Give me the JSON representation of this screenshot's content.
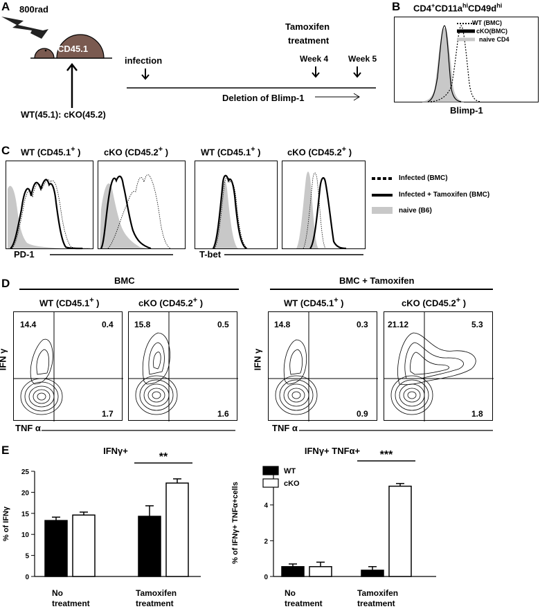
{
  "panel_labels": {
    "a": "A",
    "b": "B",
    "c": "C",
    "d": "D",
    "e": "E"
  },
  "panelA": {
    "dose": "800rad",
    "mouse_label": "CD45.1",
    "chimera": "WT(45.1): cKO(45.2)",
    "infection": "infection",
    "tamoxifen_line1": "Tamoxifen",
    "tamoxifen_line2": "treatment",
    "week4": "Week 4",
    "week5": "Week 5",
    "deletion": "Deletion of Blimp-1"
  },
  "panelB": {
    "title": "CD4",
    "title_sup": "+",
    "title_mid": "CD11a",
    "title_sup2": "hi",
    "title_end": "CD49d",
    "title_sup3": "hi",
    "legend": [
      "WT (BMC)",
      "cKO(BMC)",
      "naive CD4"
    ],
    "xlabel": "Blimp-1"
  },
  "panelC": {
    "headers": [
      "WT  (CD45.1",
      "cKO  (CD45.2",
      "WT  (CD45.1",
      "cKO  (CD45.2"
    ],
    "header_sup": "+",
    "header_close": " )",
    "pd1": "PD-1",
    "tbet": "T-bet",
    "legend": [
      "Infected   (BMC)",
      "Infected + Tamoxifen  (BMC)",
      "naive  (B6)"
    ]
  },
  "panelD": {
    "group1": "BMC",
    "group2": "BMC + Tamoxifen",
    "headers": [
      "WT  (CD45.1",
      "cKO  (CD45.2",
      "WT  (CD45.1",
      "cKO  (CD45.2"
    ],
    "header_sup": "+",
    "header_close": " )",
    "ylabel": "IFN γ",
    "xlabel": "TNF α",
    "quadrants": [
      {
        "ul": "14.4",
        "ur": "0.4",
        "lr": "1.7"
      },
      {
        "ul": "15.8",
        "ur": "0.5",
        "lr": "1.6"
      },
      {
        "ul": "14.8",
        "ur": "0.3",
        "lr": "0.9"
      },
      {
        "ul": "21.12",
        "ur": "5.3",
        "lr": "1.8"
      }
    ]
  },
  "chart_data": [
    {
      "type": "bar",
      "title": "IFNγ+",
      "ylabel": "% of IFNγ",
      "ylim": [
        0,
        25
      ],
      "yticks": [
        0,
        5,
        10,
        15,
        20,
        25
      ],
      "categories": [
        "No treatment",
        "Tamoxifen treatment"
      ],
      "category_lines": [
        [
          "No",
          "treatment"
        ],
        [
          "Tamoxifen",
          "treatment"
        ]
      ],
      "series": [
        {
          "name": "WT",
          "color": "#000000",
          "values": [
            13.3,
            14.3
          ],
          "errors": [
            0.8,
            2.5
          ]
        },
        {
          "name": "cKO",
          "color": "#ffffff",
          "values": [
            14.6,
            22.2
          ],
          "errors": [
            0.7,
            1.0
          ]
        }
      ],
      "significance": "**"
    },
    {
      "type": "bar",
      "title": "IFNγ+  TNFα+",
      "ylabel": "% of IFNγ+ TNFα+cells",
      "ylim": [
        0,
        6
      ],
      "yticks": [
        0,
        2,
        4,
        6
      ],
      "categories": [
        "No treatment",
        "Tamoxifen treatment"
      ],
      "category_lines": [
        [
          "No",
          "treatment"
        ],
        [
          "Tamoxifen",
          "treatment"
        ]
      ],
      "series": [
        {
          "name": "WT",
          "color": "#000000",
          "values": [
            0.55,
            0.35
          ],
          "errors": [
            0.15,
            0.2
          ]
        },
        {
          "name": "cKO",
          "color": "#ffffff",
          "values": [
            0.55,
            5.05
          ],
          "errors": [
            0.25,
            0.15
          ]
        }
      ],
      "significance": "***",
      "legend": [
        "WT",
        "cKO"
      ]
    }
  ]
}
